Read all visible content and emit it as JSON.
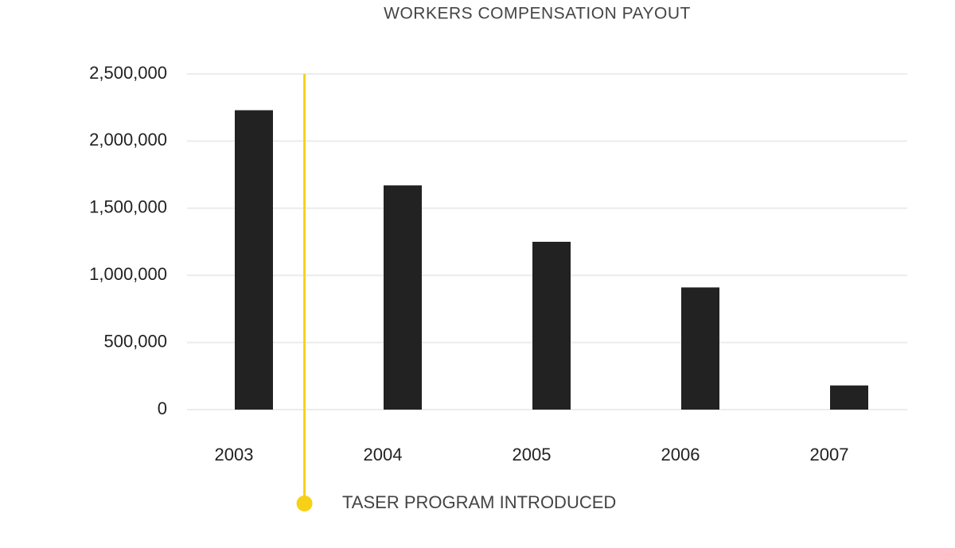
{
  "chart_data": {
    "type": "bar",
    "title": "WORKERS COMPENSATION PAYOUT",
    "categories": [
      "2003",
      "2004",
      "2005",
      "2006",
      "2007"
    ],
    "values": [
      2230000,
      1670000,
      1250000,
      910000,
      180000
    ],
    "color": "#222222",
    "ylim": [
      0,
      2500000
    ],
    "yticks": [
      0,
      {
        "value": 500000,
        "label": "500,000"
      },
      {
        "value": 1000000,
        "label": "1,000,000"
      },
      {
        "value": 1500000,
        "label": "1,500,000"
      },
      {
        "value": 2000000,
        "label": "2,000,000"
      },
      {
        "value": 2500000,
        "label": "2,500,000"
      }
    ],
    "grid": true,
    "annotation": {
      "text": "TASER PROGRAM INTRODUCED",
      "color": "#f7d117"
    }
  }
}
